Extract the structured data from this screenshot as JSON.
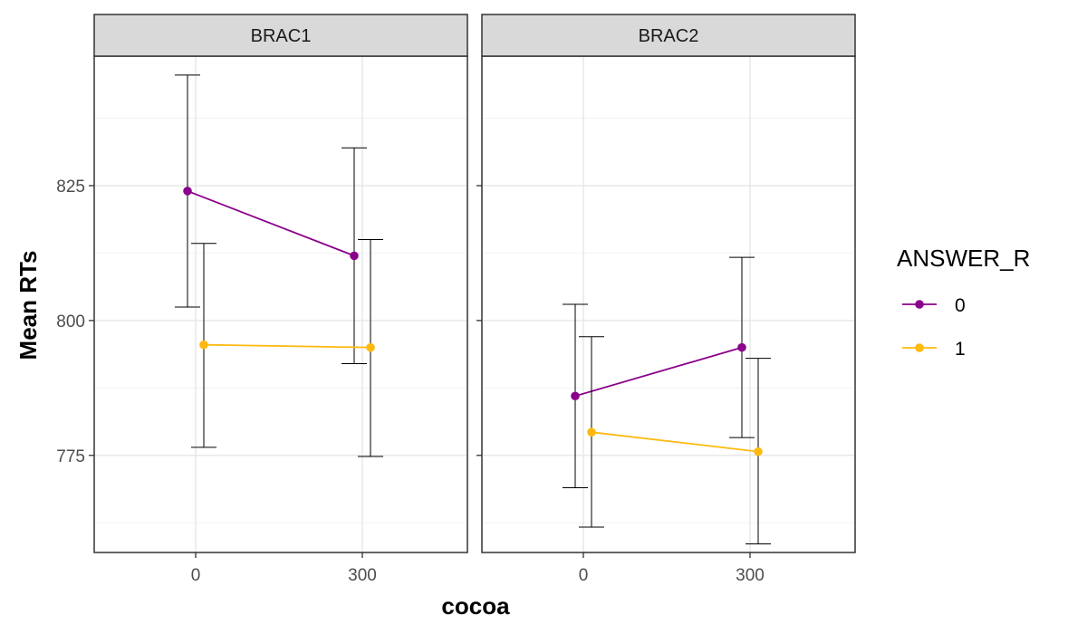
{
  "chart_data": {
    "type": "line",
    "xlabel": "cocoa",
    "ylabel": "Mean RTs",
    "x": [
      0,
      300
    ],
    "x_tick_labels": [
      "0",
      "300"
    ],
    "y_ticks": [
      775,
      800,
      825
    ],
    "ylim": [
      757,
      849
    ],
    "grid": true,
    "legend": {
      "title": "ANSWER_R",
      "placement": "right"
    },
    "colors": {
      "0": "#8B008B",
      "1": "#FFB90F"
    },
    "panels": [
      {
        "name": "BRAC1",
        "series": [
          {
            "name": "0",
            "x": [
              0,
              300
            ],
            "y": [
              824,
              812
            ],
            "ymin": [
              802.5,
              792
            ],
            "ymax": [
              845.5,
              832
            ]
          },
          {
            "name": "1",
            "x": [
              0,
              300
            ],
            "y": [
              795.5,
              795
            ],
            "ymin": [
              776.5,
              774.8
            ],
            "ymax": [
              814.3,
              815
            ]
          }
        ]
      },
      {
        "name": "BRAC2",
        "series": [
          {
            "name": "0",
            "x": [
              0,
              300
            ],
            "y": [
              786,
              795
            ],
            "ymin": [
              769,
              778.3
            ],
            "ymax": [
              803,
              811.7
            ]
          },
          {
            "name": "1",
            "x": [
              0,
              300
            ],
            "y": [
              779.3,
              775.7
            ],
            "ymin": [
              761.7,
              758.6
            ],
            "ymax": [
              797,
              793
            ]
          }
        ]
      }
    ]
  }
}
